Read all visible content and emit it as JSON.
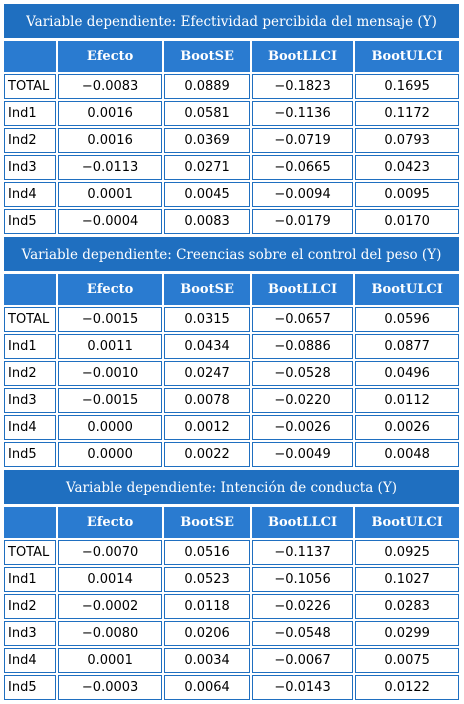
{
  "columns": [
    "",
    "Efecto",
    "BootSE",
    "BootLLCI",
    "BootULCI"
  ],
  "sections": [
    {
      "title": "Variable dependiente: Efectividad percibida del mensaje (Y)",
      "rows": [
        [
          "TOTAL",
          "−0.0083",
          "0.0889",
          "−0.1823",
          "0.1695"
        ],
        [
          "Ind1",
          "0.0016",
          "0.0581",
          "−0.1136",
          "0.1172"
        ],
        [
          "Ind2",
          "0.0016",
          "0.0369",
          "−0.0719",
          "0.0793"
        ],
        [
          "Ind3",
          "−0.0113",
          "0.0271",
          "−0.0665",
          "0.0423"
        ],
        [
          "Ind4",
          "0.0001",
          "0.0045",
          "−0.0094",
          "0.0095"
        ],
        [
          "Ind5",
          "−0.0004",
          "0.0083",
          "−0.0179",
          "0.0170"
        ]
      ]
    },
    {
      "title": "Variable dependiente: Creencias sobre el control del peso (Y)",
      "rows": [
        [
          "TOTAL",
          "−0.0015",
          "0.0315",
          "−0.0657",
          "0.0596"
        ],
        [
          "Ind1",
          "0.0011",
          "0.0434",
          "−0.0886",
          "0.0877"
        ],
        [
          "Ind2",
          "−0.0010",
          "0.0247",
          "−0.0528",
          "0.0496"
        ],
        [
          "Ind3",
          "−0.0015",
          "0.0078",
          "−0.0220",
          "0.0112"
        ],
        [
          "Ind4",
          "0.0000",
          "0.0012",
          "−0.0026",
          "0.0026"
        ],
        [
          "Ind5",
          "0.0000",
          "0.0022",
          "−0.0049",
          "0.0048"
        ]
      ]
    },
    {
      "title": "Variable dependiente: Intención de conducta (Y)",
      "rows": [
        [
          "TOTAL",
          "−0.0070",
          "0.0516",
          "−0.1137",
          "0.0925"
        ],
        [
          "Ind1",
          "0.0014",
          "0.0523",
          "−0.1056",
          "0.1027"
        ],
        [
          "Ind2",
          "−0.0002",
          "0.0118",
          "−0.0226",
          "0.0283"
        ],
        [
          "Ind3",
          "−0.0080",
          "0.0206",
          "−0.0548",
          "0.0299"
        ],
        [
          "Ind4",
          "0.0001",
          "0.0034",
          "−0.0067",
          "0.0075"
        ],
        [
          "Ind5",
          "−0.0003",
          "0.0064",
          "−0.0143",
          "0.0122"
        ]
      ]
    }
  ],
  "colors": {
    "header_bg": "#2a7bd0",
    "title_bg": "#1f6fc0",
    "cell_border": "#1f6fc0"
  }
}
